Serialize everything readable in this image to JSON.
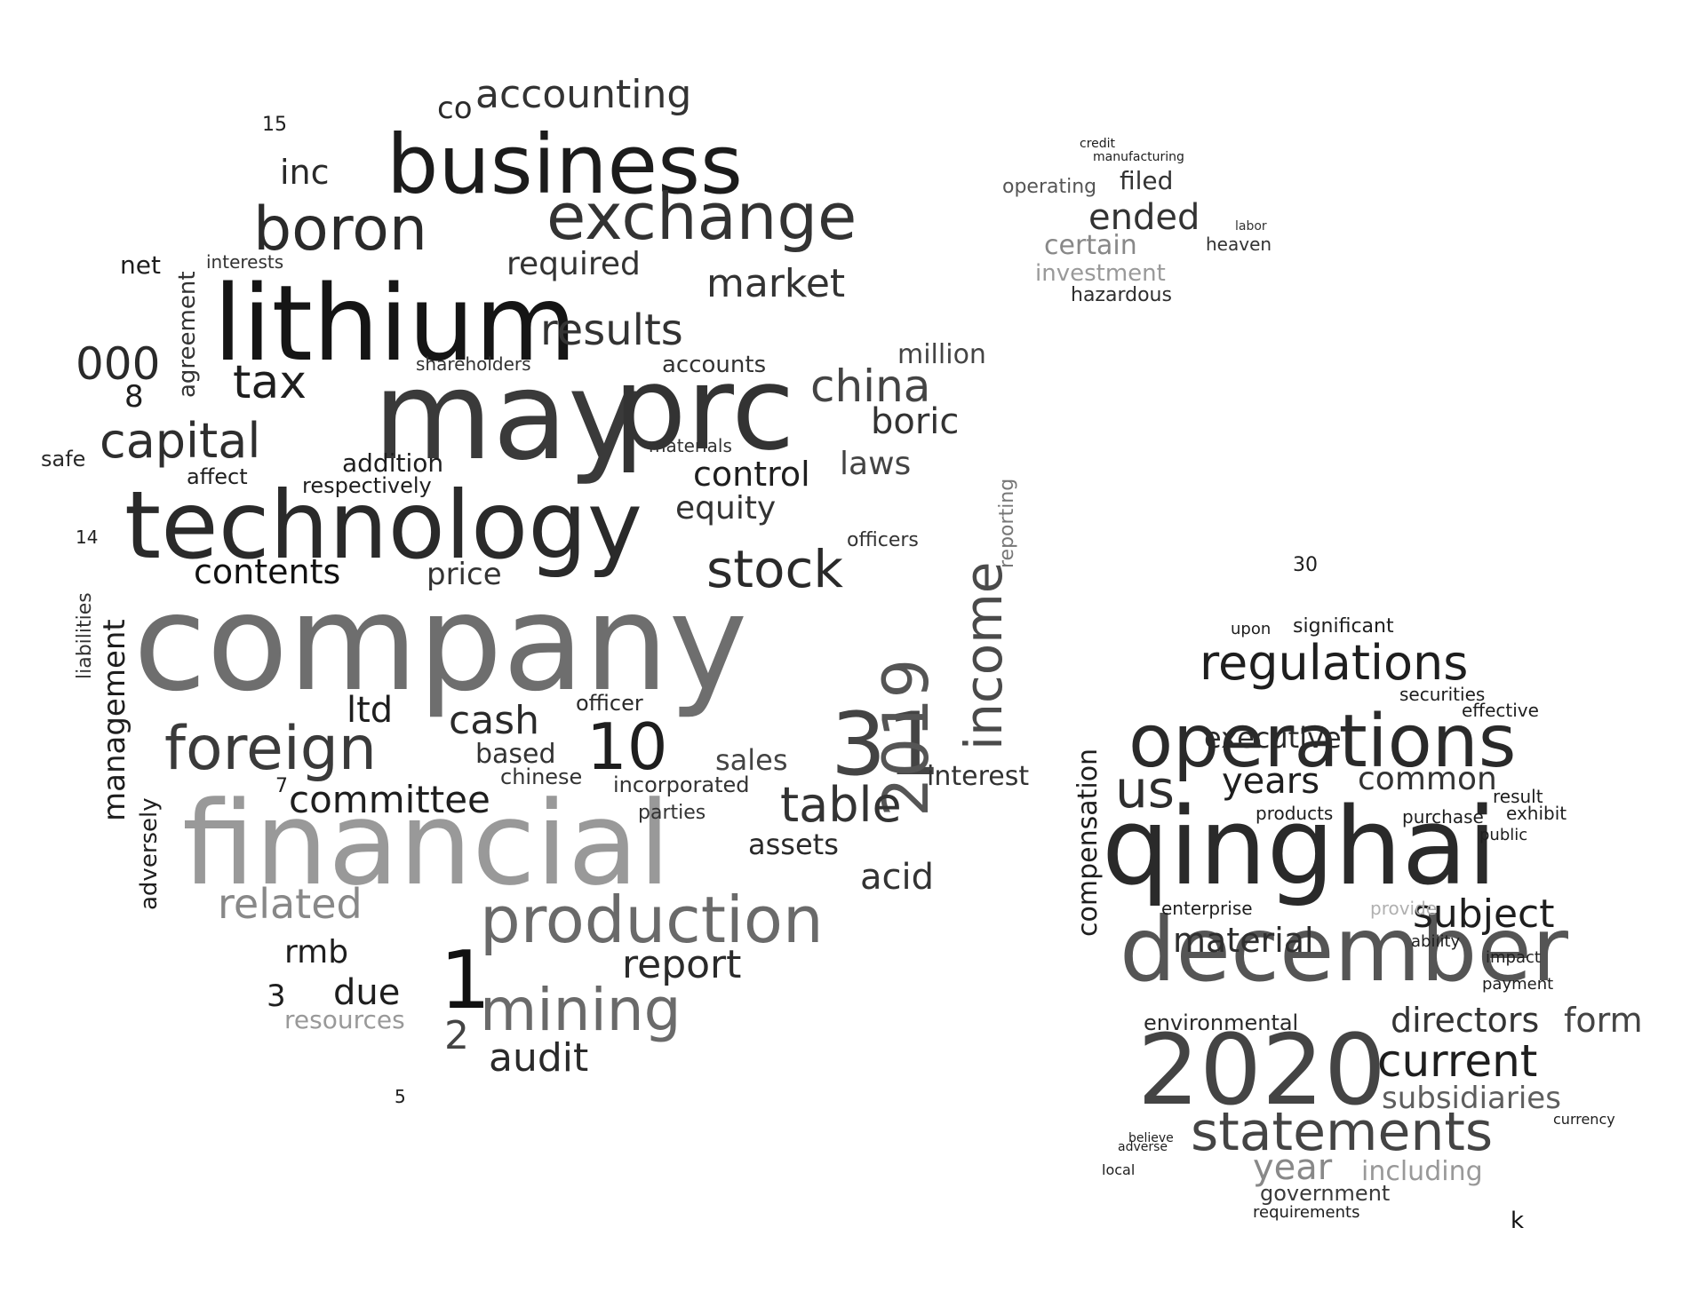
{
  "words": [
    "company",
    "financial",
    "may",
    "prc",
    "technology",
    "lithium",
    "business",
    "qinghai",
    "december",
    "2020",
    "operations",
    "exchange",
    "boron",
    "production",
    "mining",
    "31",
    "2019",
    "income",
    "foreign",
    "stock",
    "statements",
    "regulations",
    "current",
    "capital",
    "table",
    "related",
    "accounting",
    "committee",
    "market",
    "results",
    "tax",
    "000",
    "china",
    "contents",
    "control",
    "equity",
    "cash",
    "report",
    "audit",
    "laws",
    "executive",
    "years",
    "subject",
    "material",
    "directors",
    "form",
    "subsidiaries",
    "year",
    "including",
    "government",
    "environmental",
    "common",
    "management",
    "compensation",
    "10",
    "1",
    "2",
    "3",
    "ltd",
    "rmb",
    "due",
    "resources",
    "inc",
    "co",
    "required",
    "boric",
    "acid",
    "assets",
    "million",
    "interest",
    "sales",
    "price",
    "based",
    "officer",
    "incorporated",
    "adversely",
    "chinese",
    "parties",
    "addition",
    "respectively",
    "affect",
    "safe",
    "net",
    "interests",
    "agreement",
    "liabilities",
    "shareholders",
    "materials",
    "accounts",
    "officers",
    "reporting",
    "certain",
    "investment",
    "ended",
    "filed",
    "hazardous",
    "operating",
    "heaven",
    "labor",
    "credit",
    "manufacturing",
    "significant",
    "upon",
    "securities",
    "effective",
    "purchase",
    "products",
    "result",
    "exhibit",
    "public",
    "payment",
    "impact",
    "ability",
    "enterprise",
    "requirements",
    "currency",
    "believe",
    "adverse",
    "local",
    "provide",
    "k",
    "us",
    "8",
    "5",
    "30",
    "14",
    "15",
    "7"
  ],
  "palette": [
    "#111111",
    "#1e1e1e",
    "#2e2e2e",
    "#444444",
    "#5e5e5e",
    "#7a7a7a",
    "#969696",
    "#b8b8b8"
  ]
}
